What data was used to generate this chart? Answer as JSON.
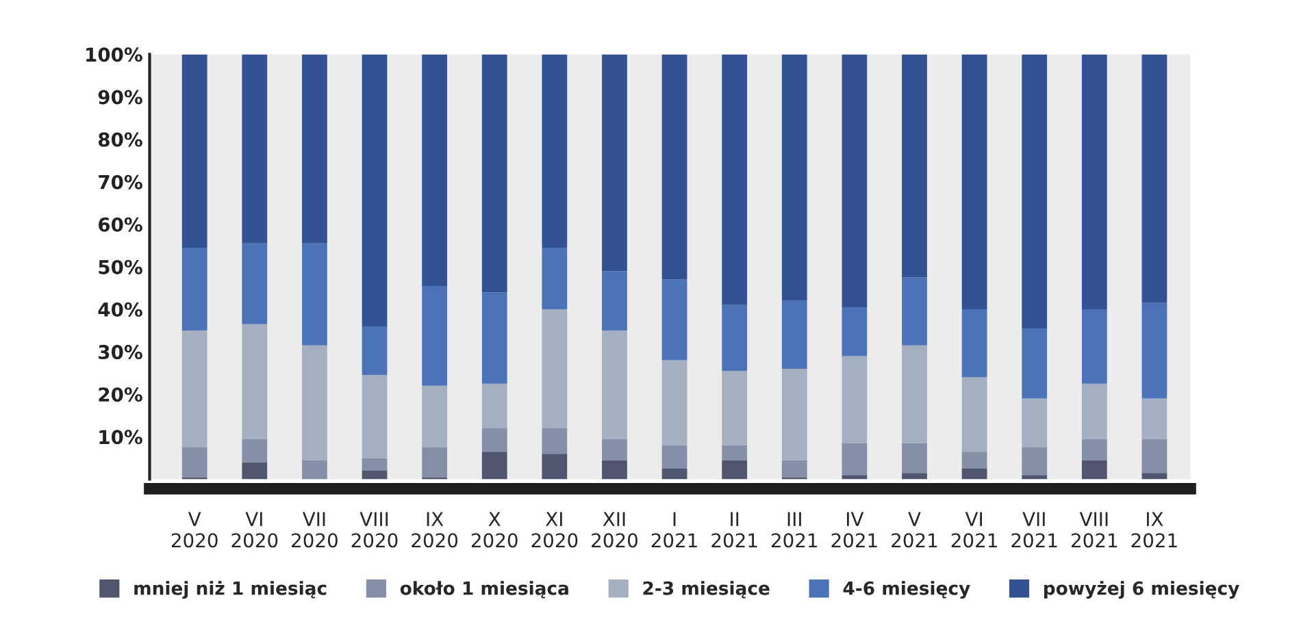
{
  "chart_data": {
    "type": "bar",
    "stacked": true,
    "categories": [
      "V\n2020",
      "VI\n2020",
      "VII\n2020",
      "VIII\n2020",
      "IX\n2020",
      "X\n2020",
      "XI\n2020",
      "XII\n2020",
      "I\n2021",
      "II\n2021",
      "III\n2021",
      "IV\n2021",
      "V\n2021",
      "VI\n2021",
      "VII\n2021",
      "VIII\n2021",
      "IX\n2021"
    ],
    "series": [
      {
        "name": "mniej niż 1 miesiąc",
        "color": "#4f566e",
        "values": [
          0.5,
          4,
          0,
          2,
          0.5,
          6.5,
          6,
          4.5,
          2.5,
          4.5,
          0.5,
          1,
          1.5,
          2.5,
          1,
          4.5,
          1.5
        ]
      },
      {
        "name": "około 1 miesiąca",
        "color": "#858fa8",
        "values": [
          7,
          5.5,
          4.5,
          3,
          7,
          5.5,
          6,
          5,
          5.5,
          3.5,
          4,
          7.5,
          7,
          4,
          6.5,
          5,
          8
        ]
      },
      {
        "name": "2-3 miesiące",
        "color": "#a5afc2",
        "values": [
          27.5,
          27,
          27,
          19.5,
          14.5,
          10.5,
          28,
          25.5,
          20,
          17.5,
          21.5,
          20.5,
          23,
          17.5,
          11.5,
          13,
          9.5
        ]
      },
      {
        "name": "4-6 miesięcy",
        "color": "#4c72b7",
        "values": [
          19.5,
          19,
          24,
          11.5,
          23.5,
          21.5,
          14.5,
          14,
          19,
          15.5,
          16,
          11.5,
          16,
          16,
          16.5,
          17.5,
          22.5
        ]
      },
      {
        "name": "powyżej 6 miesięcy",
        "color": "#335294",
        "values": [
          45.5,
          44.5,
          44.5,
          64,
          54.5,
          56,
          45.5,
          51,
          53,
          59,
          58,
          59.5,
          52.5,
          60,
          64.5,
          60,
          58.5
        ]
      }
    ],
    "ylim": [
      0,
      100
    ],
    "yticks": [
      {
        "value": 10,
        "label": "10%"
      },
      {
        "value": 20,
        "label": "20%"
      },
      {
        "value": 30,
        "label": "30%"
      },
      {
        "value": 40,
        "label": "40%"
      },
      {
        "value": 50,
        "label": "50%"
      },
      {
        "value": 60,
        "label": "60%"
      },
      {
        "value": 70,
        "label": "70%"
      },
      {
        "value": 80,
        "label": "80%"
      },
      {
        "value": 90,
        "label": "90%"
      },
      {
        "value": 100,
        "label": "100%"
      }
    ],
    "grid": false,
    "legend": "bottom"
  }
}
